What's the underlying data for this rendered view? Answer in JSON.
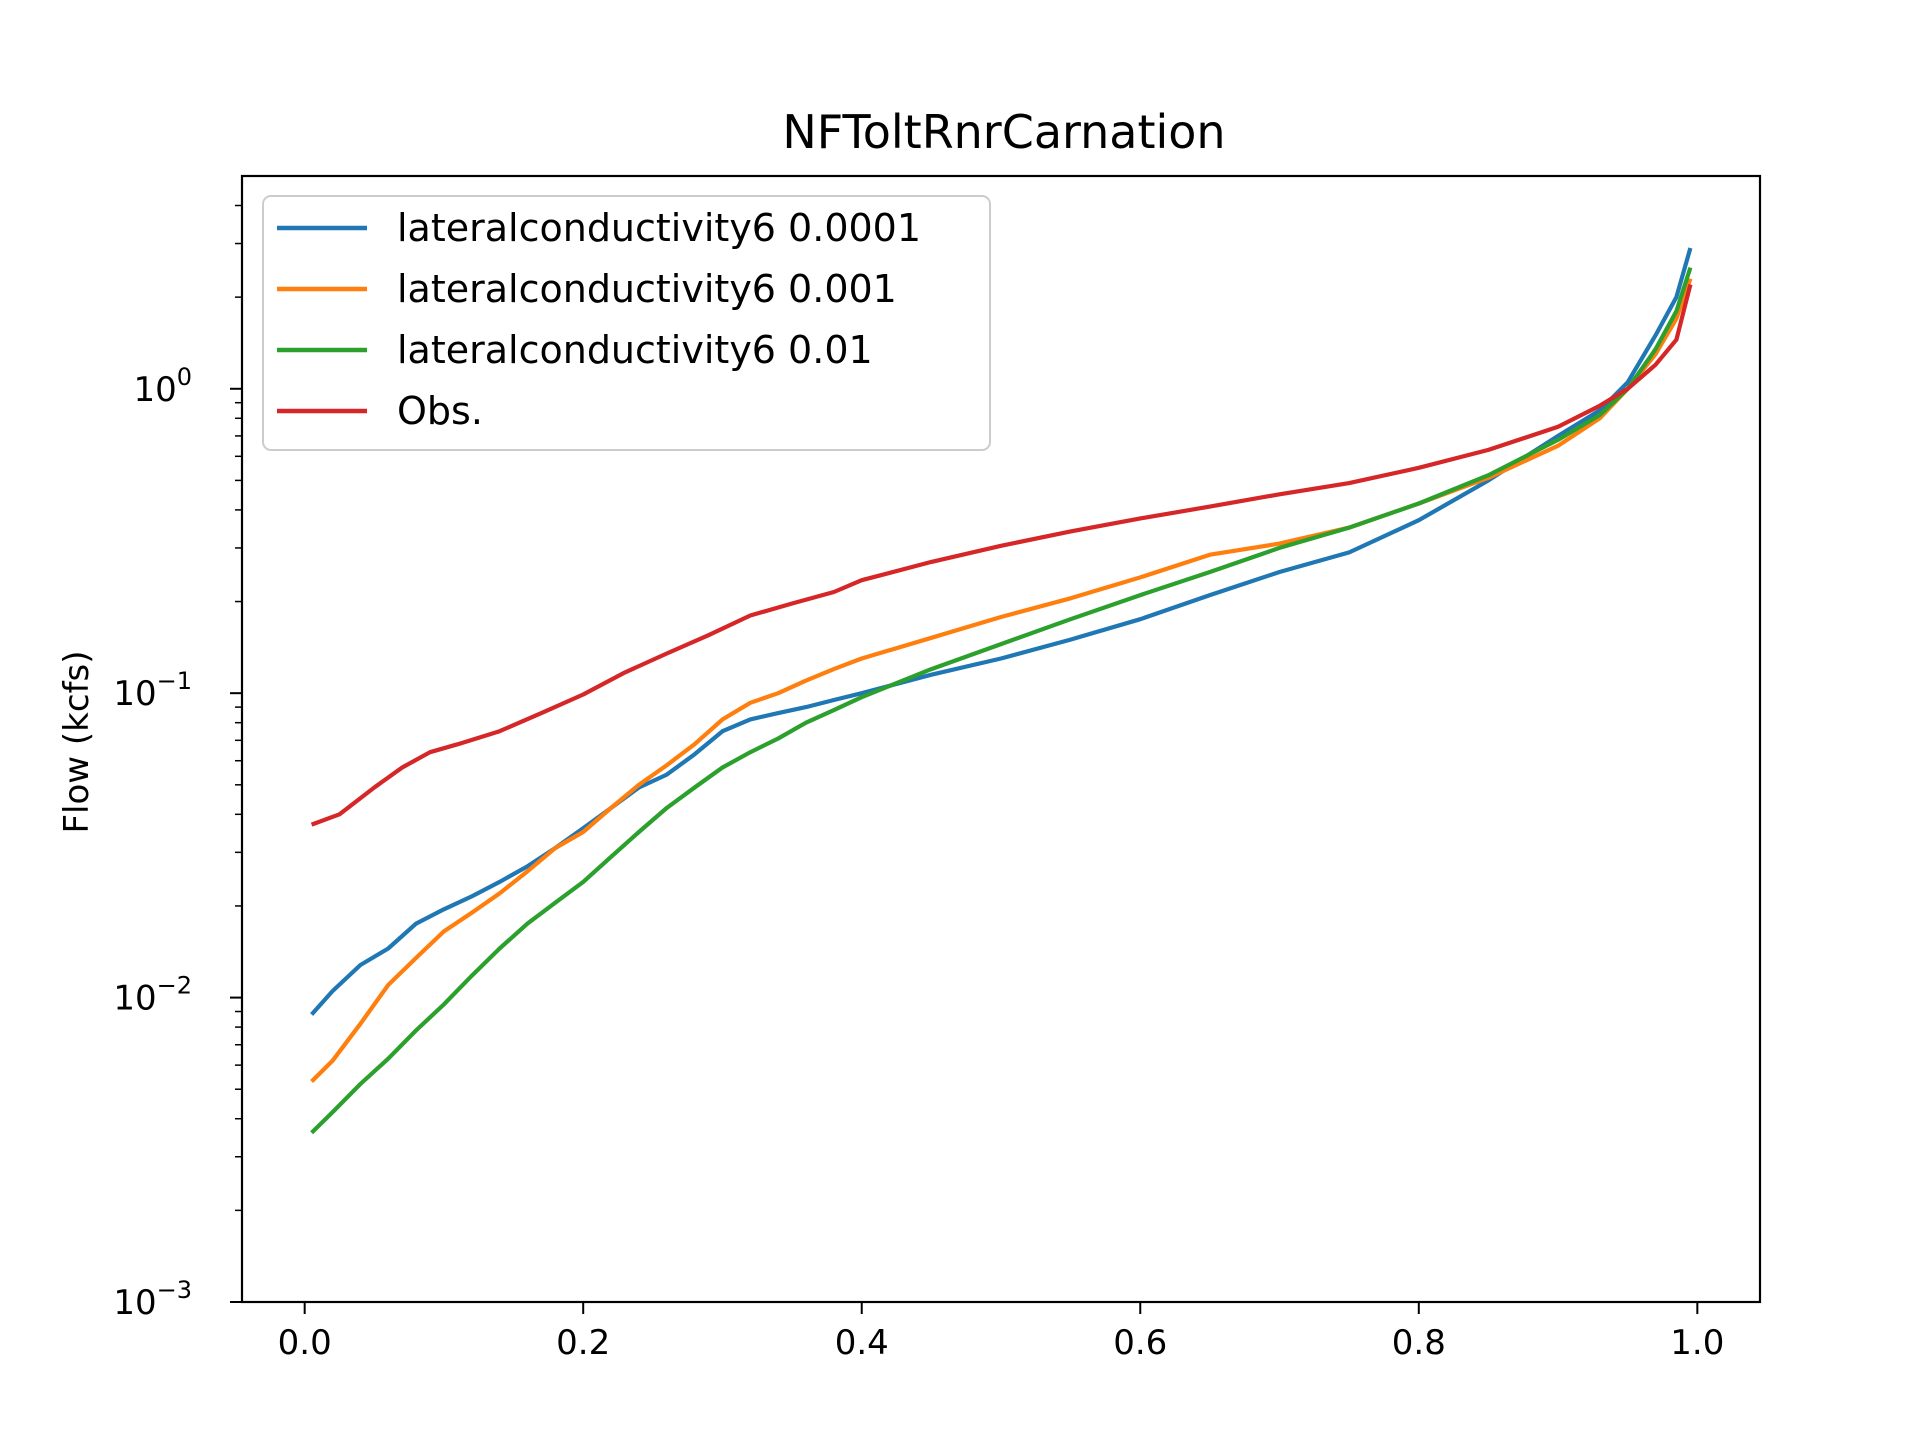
{
  "chart_data": {
    "type": "line",
    "title": "NFToltRnrCarnation",
    "xlabel": "",
    "ylabel": "Flow (kcfs)",
    "xlim": [
      -0.045,
      1.045
    ],
    "ylim": [
      0.001,
      5
    ],
    "yscale": "log",
    "grid": false,
    "legend_position": "top-left",
    "x_ticks": [
      {
        "value": 0.0,
        "label": "0.0"
      },
      {
        "value": 0.2,
        "label": "0.2"
      },
      {
        "value": 0.4,
        "label": "0.4"
      },
      {
        "value": 0.6,
        "label": "0.6"
      },
      {
        "value": 0.8,
        "label": "0.8"
      },
      {
        "value": 1.0,
        "label": "1.0"
      }
    ],
    "y_ticks": [
      {
        "value": 1,
        "base": "10",
        "exp": "0"
      },
      {
        "value": 0.1,
        "base": "10",
        "exp": "−1"
      },
      {
        "value": 0.01,
        "base": "10",
        "exp": "−2"
      },
      {
        "value": 0.001,
        "base": "10",
        "exp": "−3"
      }
    ],
    "series": [
      {
        "name": "lateralconductivity6 0.0001",
        "color": "#1f77b4",
        "x": [
          0.005,
          0.02,
          0.04,
          0.06,
          0.08,
          0.1,
          0.12,
          0.14,
          0.16,
          0.18,
          0.2,
          0.22,
          0.24,
          0.26,
          0.28,
          0.3,
          0.32,
          0.34,
          0.36,
          0.38,
          0.4,
          0.45,
          0.5,
          0.55,
          0.6,
          0.65,
          0.7,
          0.75,
          0.8,
          0.85,
          0.9,
          0.93,
          0.95,
          0.97,
          0.985,
          0.995
        ],
        "y": [
          0.0088,
          0.0105,
          0.0128,
          0.0145,
          0.0175,
          0.0195,
          0.0215,
          0.024,
          0.027,
          0.031,
          0.036,
          0.042,
          0.049,
          0.054,
          0.063,
          0.075,
          0.082,
          0.086,
          0.09,
          0.095,
          0.1,
          0.115,
          0.13,
          0.15,
          0.175,
          0.21,
          0.25,
          0.29,
          0.37,
          0.5,
          0.7,
          0.85,
          1.05,
          1.5,
          2.0,
          2.9
        ]
      },
      {
        "name": "lateralconductivity6 0.001",
        "color": "#ff7f0e",
        "x": [
          0.005,
          0.02,
          0.04,
          0.06,
          0.08,
          0.1,
          0.12,
          0.14,
          0.16,
          0.18,
          0.2,
          0.22,
          0.24,
          0.26,
          0.28,
          0.3,
          0.32,
          0.34,
          0.36,
          0.38,
          0.4,
          0.45,
          0.5,
          0.55,
          0.6,
          0.65,
          0.7,
          0.75,
          0.8,
          0.85,
          0.9,
          0.93,
          0.95,
          0.97,
          0.985,
          0.995
        ],
        "y": [
          0.0053,
          0.0062,
          0.0082,
          0.011,
          0.0135,
          0.0165,
          0.019,
          0.022,
          0.026,
          0.031,
          0.035,
          0.042,
          0.05,
          0.058,
          0.068,
          0.082,
          0.093,
          0.1,
          0.11,
          0.12,
          0.13,
          0.152,
          0.178,
          0.205,
          0.24,
          0.285,
          0.31,
          0.35,
          0.42,
          0.51,
          0.65,
          0.8,
          1.0,
          1.3,
          1.7,
          2.3
        ]
      },
      {
        "name": "lateralconductivity6 0.01",
        "color": "#2ca02c",
        "x": [
          0.005,
          0.02,
          0.04,
          0.06,
          0.08,
          0.1,
          0.12,
          0.14,
          0.16,
          0.18,
          0.2,
          0.22,
          0.24,
          0.26,
          0.28,
          0.3,
          0.32,
          0.34,
          0.36,
          0.38,
          0.4,
          0.45,
          0.5,
          0.55,
          0.6,
          0.65,
          0.7,
          0.75,
          0.8,
          0.85,
          0.9,
          0.93,
          0.95,
          0.97,
          0.985,
          0.995
        ],
        "y": [
          0.0036,
          0.0042,
          0.0052,
          0.0063,
          0.0078,
          0.0095,
          0.0118,
          0.0145,
          0.0175,
          0.0205,
          0.024,
          0.029,
          0.035,
          0.042,
          0.049,
          0.057,
          0.064,
          0.071,
          0.08,
          0.088,
          0.097,
          0.12,
          0.145,
          0.175,
          0.21,
          0.25,
          0.3,
          0.35,
          0.42,
          0.52,
          0.68,
          0.82,
          1.0,
          1.35,
          1.8,
          2.5
        ]
      },
      {
        "name": "Obs.",
        "color": "#d62728",
        "x": [
          0.005,
          0.025,
          0.05,
          0.07,
          0.09,
          0.11,
          0.14,
          0.17,
          0.2,
          0.23,
          0.26,
          0.29,
          0.32,
          0.35,
          0.38,
          0.4,
          0.45,
          0.5,
          0.55,
          0.6,
          0.65,
          0.7,
          0.75,
          0.8,
          0.85,
          0.9,
          0.93,
          0.95,
          0.97,
          0.985,
          0.995
        ],
        "y": [
          0.037,
          0.04,
          0.049,
          0.057,
          0.064,
          0.068,
          0.075,
          0.086,
          0.099,
          0.117,
          0.135,
          0.155,
          0.18,
          0.197,
          0.215,
          0.235,
          0.27,
          0.305,
          0.34,
          0.375,
          0.41,
          0.45,
          0.49,
          0.55,
          0.63,
          0.75,
          0.88,
          1.0,
          1.2,
          1.45,
          2.2
        ]
      }
    ]
  }
}
